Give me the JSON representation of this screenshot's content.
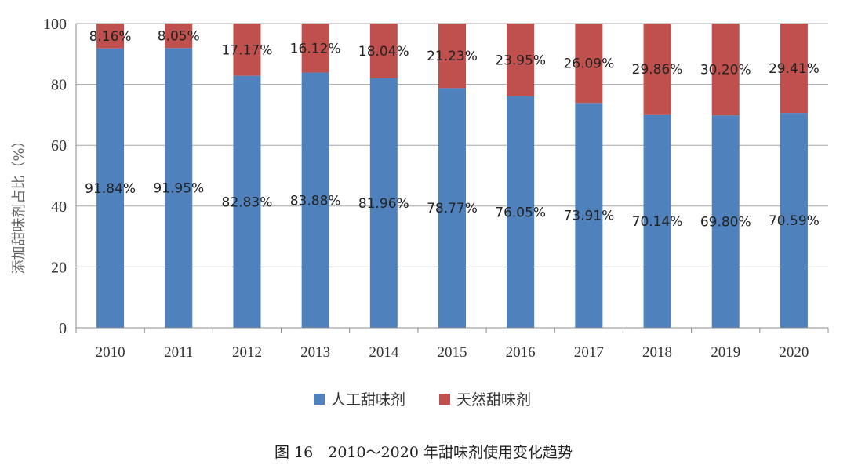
{
  "chart_data": {
    "type": "bar",
    "stacked": true,
    "categories": [
      "2010",
      "2011",
      "2012",
      "2013",
      "2014",
      "2015",
      "2016",
      "2017",
      "2018",
      "2019",
      "2020"
    ],
    "series": [
      {
        "name": "人工甜味剂",
        "color": "#4f81bd",
        "values": [
          91.84,
          91.95,
          82.83,
          83.88,
          81.96,
          78.77,
          76.05,
          73.91,
          70.14,
          69.8,
          70.59
        ],
        "labels": [
          "91.84%",
          "91.95%",
          "82.83%",
          "83.88%",
          "81.96%",
          "78.77%",
          "76.05%",
          "73.91%",
          "70.14%",
          "69.80%",
          "70.59%"
        ]
      },
      {
        "name": "天然甜味剂",
        "color": "#c0504d",
        "values": [
          8.16,
          8.05,
          17.17,
          16.12,
          18.04,
          21.23,
          23.95,
          26.09,
          29.86,
          30.2,
          29.41
        ],
        "labels": [
          "8.16%",
          "8.05%",
          "17.17%",
          "16.12%",
          "18.04%",
          "21.23%",
          "23.95%",
          "26.09%",
          "29.86%",
          "30.20%",
          "29.41%"
        ]
      }
    ],
    "ylabel": "添加甜味剂占比（%）",
    "xlabel": "",
    "ylim": [
      0,
      100
    ],
    "yticks": [
      "0",
      "20",
      "40",
      "60",
      "80",
      "100"
    ],
    "grid": true,
    "legend": "bottom"
  },
  "caption": "图 16　2010～2020 年甜味剂使用变化趋势"
}
